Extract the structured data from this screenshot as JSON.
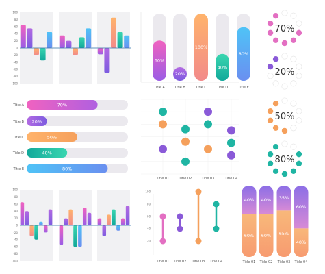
{
  "chart_data": [
    {
      "id": "vbars_top",
      "type": "bar",
      "panels": [
        {
          "values": [
            65,
            55,
            -20,
            -35,
            45
          ]
        },
        {
          "values": [
            35,
            20,
            -20,
            30,
            55
          ]
        },
        {
          "values": [
            -18,
            -70,
            85,
            45,
            35
          ]
        }
      ],
      "yticks": [
        "100",
        "80",
        "60",
        "40",
        "20",
        "0",
        "-20",
        "-40",
        "-60",
        "-80",
        "-100"
      ],
      "ylim": [
        -100,
        100
      ]
    },
    {
      "id": "capsules",
      "type": "bar",
      "categories": [
        "Title A",
        "Title B",
        "Title C",
        "Title D",
        "Title E"
      ],
      "values": [
        60,
        20,
        100,
        40,
        80
      ],
      "labels": [
        "60%",
        "20%",
        "100%",
        "40%",
        "80%"
      ],
      "ylim": [
        0,
        100
      ]
    },
    {
      "id": "dot_rings",
      "type": "pie",
      "items": [
        {
          "value": 70,
          "label": "70%",
          "color": "#e36fc2"
        },
        {
          "value": 20,
          "label": "20%",
          "color": "#8a5ad8"
        },
        {
          "value": 50,
          "label": "50%",
          "color": "#f5a05c"
        },
        {
          "value": 80,
          "label": "80%",
          "color": "#1fb5a3"
        }
      ]
    },
    {
      "id": "hbars",
      "type": "bar",
      "categories": [
        "Title A",
        "Title B",
        "Title C",
        "Title D",
        "Title E"
      ],
      "values": [
        70,
        20,
        50,
        40,
        80
      ],
      "labels": [
        "70%",
        "20%",
        "50%",
        "40%",
        "80%"
      ],
      "xlim": [
        0,
        100
      ]
    },
    {
      "id": "dot_plot",
      "type": "scatter",
      "categories": [
        "Title 01",
        "Title 02",
        "Title 03",
        "Title 04"
      ],
      "points": [
        {
          "x": 1,
          "y": 2,
          "color": "#8a5ad8"
        },
        {
          "x": 1,
          "y": 4,
          "color": "#f5a05c"
        },
        {
          "x": 1,
          "y": 5,
          "color": "#1fb5a3"
        },
        {
          "x": 2,
          "y": 1,
          "color": "#1fb5a3"
        },
        {
          "x": 2,
          "y": 2.6,
          "color": "#f5a05c"
        },
        {
          "x": 2,
          "y": 3.6,
          "color": "#1fb5a3"
        },
        {
          "x": 3,
          "y": 2,
          "color": "#f5a05c"
        },
        {
          "x": 3,
          "y": 4,
          "color": "#1fb5a3"
        },
        {
          "x": 3,
          "y": 5,
          "color": "#8a5ad8"
        },
        {
          "x": 4,
          "y": 1.5,
          "color": "#8a5ad8"
        },
        {
          "x": 4,
          "y": 2.5,
          "color": "#1fb5a3"
        },
        {
          "x": 4,
          "y": 3.5,
          "color": "#8a5ad8"
        }
      ],
      "ylim": [
        0,
        6
      ],
      "grid": true
    },
    {
      "id": "vbars_bottom",
      "type": "bar",
      "panels": [
        {
          "values": [
            65,
            40,
            -30,
            -40,
            10,
            -20,
            45
          ]
        },
        {
          "values": [
            -55,
            20,
            45,
            -60,
            -60,
            50,
            35
          ]
        },
        {
          "values": [
            20,
            -30,
            30,
            45,
            -15,
            20,
            55
          ]
        }
      ],
      "yticks": [
        "100",
        "80",
        "60",
        "40",
        "20",
        "0",
        "-20",
        "-40",
        "-60",
        "-80",
        "-100"
      ],
      "ylim": [
        -100,
        100
      ]
    },
    {
      "id": "dumbbell",
      "type": "scatter",
      "categories": [
        "Title 01",
        "Title 02",
        "Title 03",
        "Title 04"
      ],
      "ranges": [
        {
          "low": 20,
          "high": 60,
          "color": "#e36fc2"
        },
        {
          "low": 40,
          "high": 60,
          "color": "#8a5ad8"
        },
        {
          "low": 20,
          "high": 100,
          "color": "#f5a05c"
        },
        {
          "low": 40,
          "high": 80,
          "color": "#1fb5a3"
        }
      ],
      "yticks": [
        "100",
        "80",
        "60",
        "40",
        "20"
      ],
      "ylim": [
        0,
        110
      ]
    },
    {
      "id": "stacked",
      "type": "bar",
      "categories": [
        "Title 01",
        "Title 02",
        "Title 03",
        "Title 04"
      ],
      "series": [
        {
          "values": [
            40,
            40,
            35,
            60
          ],
          "labels": [
            "40%",
            "40%",
            "35%",
            "60%"
          ]
        },
        {
          "values": [
            60,
            60,
            65,
            40
          ],
          "labels": [
            "60%",
            "60%",
            "65%",
            "40%"
          ]
        }
      ],
      "stacked": true
    }
  ]
}
